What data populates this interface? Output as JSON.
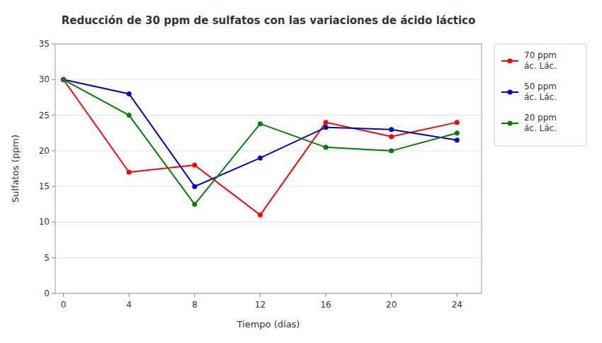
{
  "chart_data": {
    "type": "line",
    "title": "Reducción de 30 ppm de sulfatos con las variaciones de ácido láctico",
    "x_label": "Tiempo (días)",
    "y_label": "Sulfatos (ppm)",
    "x": [
      0,
      4,
      8,
      12,
      16,
      20,
      24
    ],
    "series": [
      {
        "name": "70 ppm\nác. Lác.",
        "color": "#FF0000",
        "marker": "circle",
        "values": [
          30,
          17,
          18,
          11,
          24,
          22,
          24
        ]
      },
      {
        "name": "50 ppm\nác. Lác.",
        "color": "#0000CC",
        "marker": "circle",
        "values": [
          30,
          28,
          15,
          19,
          23.3,
          23,
          21.5
        ]
      },
      {
        "name": "20 ppm\nác. Lác.",
        "color": "#008000",
        "marker": "circle",
        "values": [
          30,
          25,
          12.5,
          23.8,
          20.5,
          20,
          22.5
        ]
      }
    ],
    "xlim": [
      -0.5,
      25.5
    ],
    "xticks": [
      0,
      4,
      8,
      12,
      16,
      20,
      24
    ],
    "ylim": [
      0,
      35
    ],
    "yticks": [
      0,
      5,
      10,
      15,
      20,
      25,
      30,
      35
    ],
    "grid": true,
    "legend": "right"
  }
}
